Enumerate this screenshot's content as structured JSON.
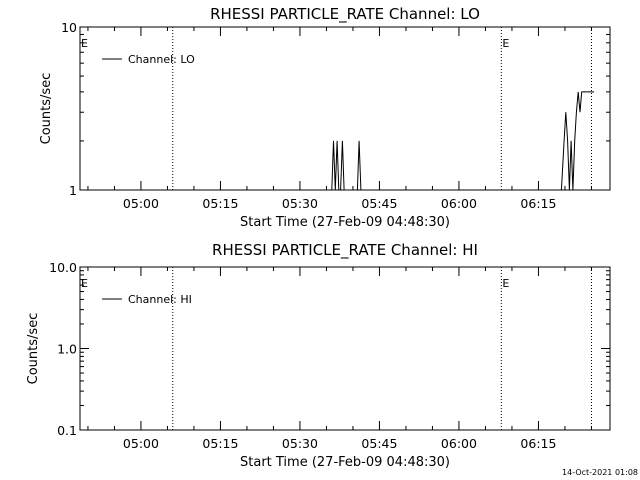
{
  "footer": {
    "timestamp": "14-Oct-2021 01:08"
  },
  "chart_data": [
    {
      "type": "line",
      "title": "RHESSI PARTICLE_RATE Channel: LO",
      "xlabel": "Start Time (27-Feb-09 04:48:30)",
      "ylabel": "Counts/sec",
      "y_scale": "log",
      "xlim": [
        "04:48:30",
        "06:28:30"
      ],
      "ylim": [
        1,
        10
      ],
      "x_ticks": [
        "05:00",
        "05:15",
        "05:30",
        "05:45",
        "06:00",
        "06:15"
      ],
      "y_ticks": [
        "1",
        "10"
      ],
      "legend": {
        "placement": "top-left",
        "entries": [
          "Channel: LO"
        ]
      },
      "markers": [
        {
          "time": "04:48:30",
          "label": "E"
        },
        {
          "time": "05:06:00",
          "label": ""
        },
        {
          "time": "06:08:00",
          "label": "E"
        },
        {
          "time": "06:25:00",
          "label": ""
        }
      ],
      "series": [
        {
          "name": "Channel: LO",
          "x": [
            "05:36:00",
            "05:36:20",
            "05:36:40",
            "05:37:00",
            "05:37:20",
            "05:37:40",
            "05:38:00",
            "05:38:20",
            "05:38:40",
            "05:39:00",
            "05:40:50",
            "05:41:10",
            "05:41:30",
            "05:41:50",
            "06:19:20",
            "06:19:50",
            "06:20:10",
            "06:20:30",
            "06:20:50",
            "06:21:10",
            "06:21:30",
            "06:21:50",
            "06:22:10",
            "06:22:30",
            "06:22:50",
            "06:23:10",
            "06:23:30",
            "06:23:50",
            "06:24:10",
            "06:24:30",
            "06:24:50",
            "06:25:30"
          ],
          "y": [
            1,
            2,
            1,
            2,
            1,
            1,
            2,
            1,
            1,
            1,
            1,
            2,
            1,
            1,
            1,
            2,
            3,
            2,
            1,
            2,
            1,
            2,
            3,
            4,
            3,
            4,
            4,
            4,
            4,
            4,
            4,
            4
          ]
        }
      ]
    },
    {
      "type": "line",
      "title": "RHESSI PARTICLE_RATE Channel: HI",
      "xlabel": "Start Time (27-Feb-09 04:48:30)",
      "ylabel": "Counts/sec",
      "y_scale": "log",
      "xlim": [
        "04:48:30",
        "06:28:30"
      ],
      "ylim": [
        0.1,
        10
      ],
      "x_ticks": [
        "05:00",
        "05:15",
        "05:30",
        "05:45",
        "06:00",
        "06:15"
      ],
      "y_ticks": [
        "0.1",
        "1.0",
        "10.0"
      ],
      "legend": {
        "placement": "top-left",
        "entries": [
          "Channel: HI"
        ]
      },
      "markers": [
        {
          "time": "04:48:30",
          "label": "E"
        },
        {
          "time": "05:06:00",
          "label": ""
        },
        {
          "time": "06:08:00",
          "label": "E"
        },
        {
          "time": "06:25:00",
          "label": ""
        }
      ],
      "series": [
        {
          "name": "Channel: HI",
          "x": [],
          "y": []
        }
      ]
    }
  ]
}
